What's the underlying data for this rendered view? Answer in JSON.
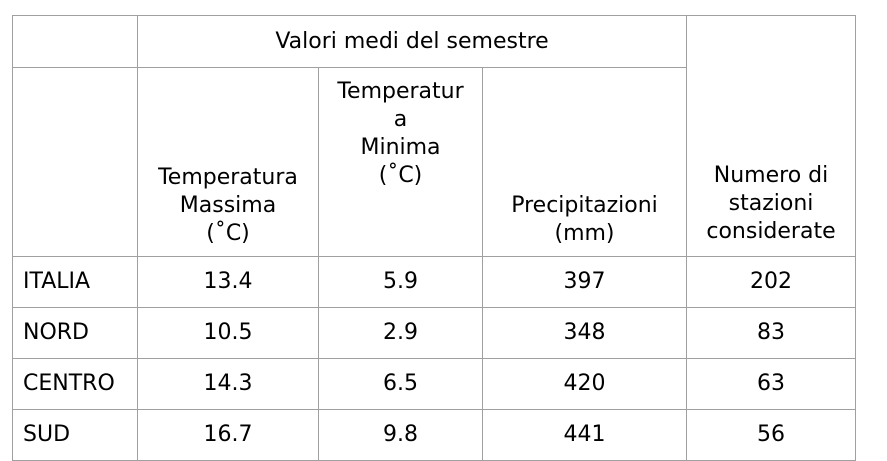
{
  "table": {
    "header": {
      "group": "Valori medi del semestre",
      "columns": [
        "Temperatura\nMassima\n(˚C)",
        "Temperatur\na\nMinima\n(˚C)",
        "Precipitazioni\n(mm)",
        "Numero di\nstazioni\nconsiderate"
      ]
    },
    "rows": [
      [
        "ITALIA",
        13.4,
        5.9,
        397,
        202
      ],
      [
        "NORD",
        10.5,
        2.9,
        348,
        83
      ],
      [
        "CENTRO",
        14.3,
        6.5,
        420,
        63
      ],
      [
        "SUD",
        16.7,
        9.8,
        441,
        56
      ]
    ]
  }
}
